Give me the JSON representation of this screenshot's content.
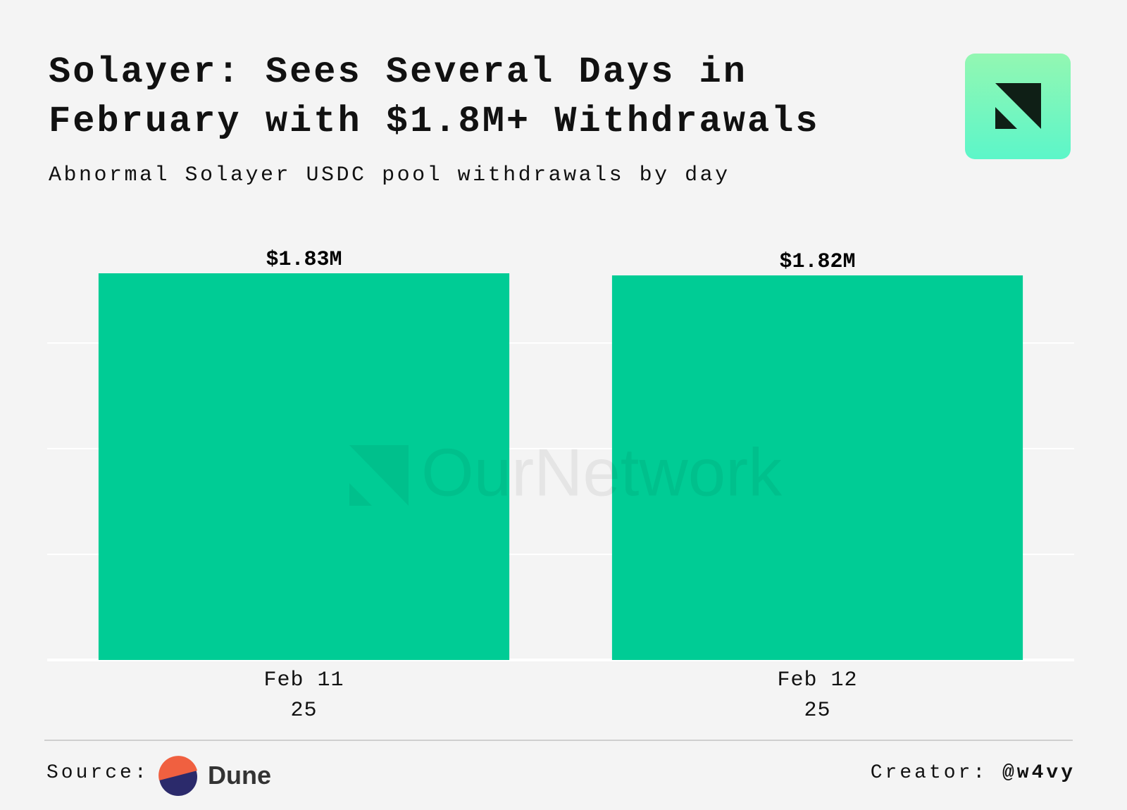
{
  "chart_data": {
    "type": "bar",
    "title_highlight": "Solayer:",
    "title": "Sees Several Days in February with $1.8M+ Withdrawals",
    "subtitle": "Abnormal Solayer USDC pool withdrawals by day",
    "watermark": "OurNetwork",
    "categories": [
      "Feb 11\n25",
      "Feb 12\n25"
    ],
    "values": [
      1830000,
      1820000
    ],
    "value_labels": [
      "$1.83M",
      "$1.82M"
    ],
    "color": "#00cc95",
    "ylim": [
      0,
      2000000
    ],
    "yticks": [
      0,
      500000,
      1000000,
      1500000
    ],
    "grid": true
  },
  "footer": {
    "source_label": "Source:",
    "source_name": "Dune",
    "creator_label": "Creator:",
    "creator_handle": "@w4vy"
  }
}
